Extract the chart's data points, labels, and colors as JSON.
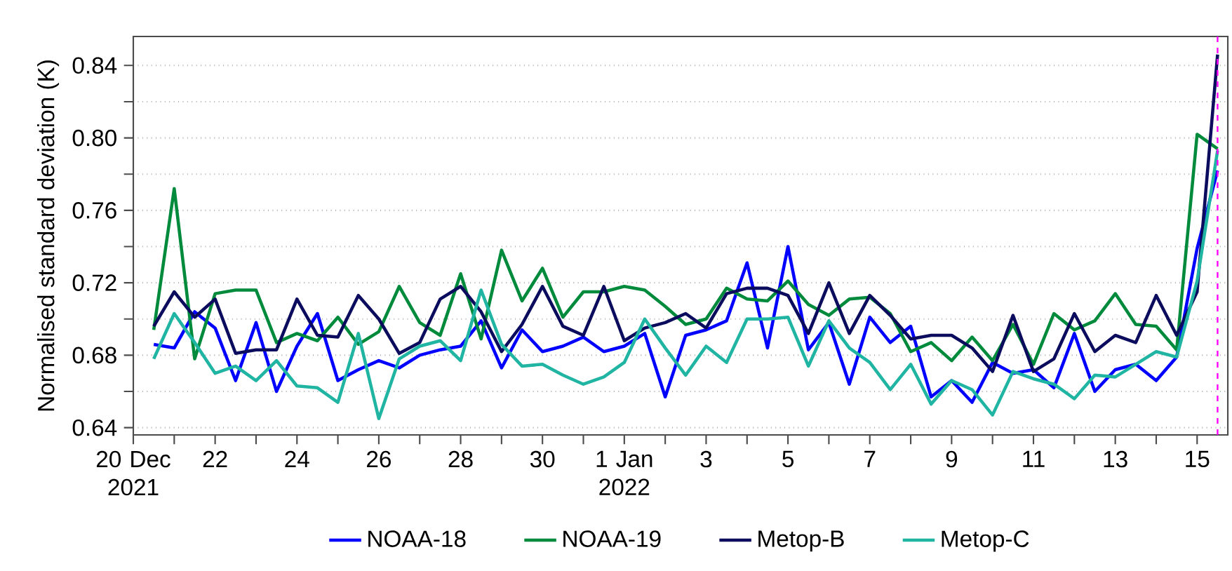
{
  "chart_data": {
    "type": "line",
    "ylabel": "Normalised standard deviation (K)",
    "x": [
      "2021-12-20T12:00",
      "2021-12-21",
      "2021-12-21T12:00",
      "2021-12-22",
      "2021-12-22T12:00",
      "2021-12-23",
      "2021-12-23T12:00",
      "2021-12-24",
      "2021-12-24T12:00",
      "2021-12-25",
      "2021-12-25T12:00",
      "2021-12-26",
      "2021-12-26T12:00",
      "2021-12-27",
      "2021-12-27T12:00",
      "2021-12-28",
      "2021-12-28T12:00",
      "2021-12-29",
      "2021-12-29T12:00",
      "2021-12-30",
      "2021-12-30T12:00",
      "2021-12-31",
      "2021-12-31T12:00",
      "2022-01-01",
      "2022-01-01T12:00",
      "2022-01-02",
      "2022-01-02T12:00",
      "2022-01-03",
      "2022-01-03T12:00",
      "2022-01-04",
      "2022-01-04T12:00",
      "2022-01-05",
      "2022-01-05T12:00",
      "2022-01-06",
      "2022-01-06T12:00",
      "2022-01-07",
      "2022-01-07T12:00",
      "2022-01-08",
      "2022-01-08T12:00",
      "2022-01-09",
      "2022-01-09T12:00",
      "2022-01-10",
      "2022-01-10T12:00",
      "2022-01-11",
      "2022-01-11T12:00",
      "2022-01-12",
      "2022-01-12T12:00",
      "2022-01-13",
      "2022-01-13T12:00",
      "2022-01-14",
      "2022-01-14T12:00",
      "2022-01-15",
      "2022-01-15T12:00"
    ],
    "series": [
      {
        "name": "NOAA-18",
        "color": "#0000ff",
        "values": [
          0.686,
          0.684,
          0.704,
          0.695,
          0.666,
          0.698,
          0.66,
          0.685,
          0.703,
          0.666,
          0.672,
          0.677,
          0.673,
          0.68,
          0.683,
          0.685,
          0.699,
          0.673,
          0.694,
          0.682,
          0.685,
          0.69,
          0.682,
          0.685,
          0.692,
          0.657,
          0.691,
          0.694,
          0.699,
          0.731,
          0.684,
          0.74,
          0.683,
          0.698,
          0.664,
          0.701,
          0.687,
          0.696,
          0.657,
          0.666,
          0.654,
          0.676,
          0.67,
          0.672,
          0.662,
          0.692,
          0.66,
          0.672,
          0.675,
          0.666,
          0.679,
          0.739,
          0.782
        ]
      },
      {
        "name": "NOAA-19",
        "color": "#008a3c",
        "values": [
          0.694,
          0.772,
          0.678,
          0.714,
          0.716,
          0.716,
          0.687,
          0.692,
          0.688,
          0.701,
          0.686,
          0.693,
          0.718,
          0.698,
          0.691,
          0.725,
          0.689,
          0.738,
          0.71,
          0.728,
          0.701,
          0.715,
          0.715,
          0.718,
          0.716,
          0.707,
          0.697,
          0.7,
          0.717,
          0.711,
          0.71,
          0.721,
          0.708,
          0.702,
          0.711,
          0.712,
          0.703,
          0.682,
          0.687,
          0.677,
          0.69,
          0.677,
          0.697,
          0.675,
          0.703,
          0.694,
          0.699,
          0.714,
          0.697,
          0.696,
          0.683,
          0.802,
          0.794
        ]
      },
      {
        "name": "Metop-B",
        "color": "#0c0c5e",
        "values": [
          0.696,
          0.715,
          0.701,
          0.711,
          0.681,
          0.683,
          0.683,
          0.711,
          0.691,
          0.69,
          0.713,
          0.7,
          0.681,
          0.687,
          0.711,
          0.718,
          0.704,
          0.682,
          0.697,
          0.718,
          0.696,
          0.691,
          0.718,
          0.688,
          0.695,
          0.698,
          0.703,
          0.695,
          0.714,
          0.717,
          0.717,
          0.713,
          0.692,
          0.72,
          0.692,
          0.713,
          0.702,
          0.689,
          0.691,
          0.691,
          0.684,
          0.671,
          0.702,
          0.671,
          0.678,
          0.703,
          0.682,
          0.691,
          0.687,
          0.713,
          0.691,
          0.715,
          0.846
        ]
      },
      {
        "name": "Metop-C",
        "color": "#20b4a2",
        "values": [
          0.678,
          0.703,
          0.687,
          0.67,
          0.674,
          0.666,
          0.677,
          0.663,
          0.662,
          0.654,
          0.692,
          0.645,
          0.678,
          0.685,
          0.688,
          0.677,
          0.716,
          0.686,
          0.674,
          0.675,
          0.669,
          0.664,
          0.668,
          0.676,
          0.7,
          0.684,
          0.669,
          0.685,
          0.676,
          0.7,
          0.7,
          0.701,
          0.674,
          0.699,
          0.684,
          0.676,
          0.661,
          0.675,
          0.653,
          0.666,
          0.661,
          0.647,
          0.671,
          0.667,
          0.664,
          0.656,
          0.669,
          0.668,
          0.675,
          0.682,
          0.679,
          0.721,
          0.793
        ]
      }
    ],
    "xlim": [
      "2021-12-20",
      "2022-01-15T18:00"
    ],
    "ylim": [
      0.636,
      0.856
    ],
    "xticks": [
      {
        "value": "2021-12-20",
        "label": "20 Dec 2021"
      },
      {
        "value": "2021-12-21",
        "label": null
      },
      {
        "value": "2021-12-22",
        "label": "22"
      },
      {
        "value": "2021-12-23",
        "label": null
      },
      {
        "value": "2021-12-24",
        "label": "24"
      },
      {
        "value": "2021-12-25",
        "label": null
      },
      {
        "value": "2021-12-26",
        "label": "26"
      },
      {
        "value": "2021-12-27",
        "label": null
      },
      {
        "value": "2021-12-28",
        "label": "28"
      },
      {
        "value": "2021-12-29",
        "label": null
      },
      {
        "value": "2021-12-30",
        "label": "30"
      },
      {
        "value": "2021-12-31",
        "label": null
      },
      {
        "value": "2022-01-01",
        "label": "1 Jan 2022"
      },
      {
        "value": "2022-01-02",
        "label": null
      },
      {
        "value": "2022-01-03",
        "label": "3"
      },
      {
        "value": "2022-01-04",
        "label": null
      },
      {
        "value": "2022-01-05",
        "label": "5"
      },
      {
        "value": "2022-01-06",
        "label": null
      },
      {
        "value": "2022-01-07",
        "label": "7"
      },
      {
        "value": "2022-01-08",
        "label": null
      },
      {
        "value": "2022-01-09",
        "label": "9"
      },
      {
        "value": "2022-01-10",
        "label": null
      },
      {
        "value": "2022-01-11",
        "label": "11"
      },
      {
        "value": "2022-01-12",
        "label": null
      },
      {
        "value": "2022-01-13",
        "label": "13"
      },
      {
        "value": "2022-01-14",
        "label": null
      },
      {
        "value": "2022-01-15",
        "label": "15"
      }
    ],
    "yticks": [
      0.64,
      {
        "value": 0.66,
        "label": null
      },
      0.68,
      {
        "value": 0.7,
        "label": null
      },
      0.72,
      {
        "value": 0.74,
        "label": null
      },
      0.76,
      {
        "value": 0.78,
        "label": null
      },
      {
        "value": 0.8,
        "label": "0.80"
      },
      {
        "value": 0.82,
        "label": null
      },
      0.84
    ],
    "ref_lines": [
      {
        "axis": "x",
        "value": "2022-01-15T12:00",
        "color": "#ff00ff",
        "line_style": "dashed"
      }
    ],
    "grid": "y",
    "legend": "bottom",
    "line_style": "solid"
  }
}
